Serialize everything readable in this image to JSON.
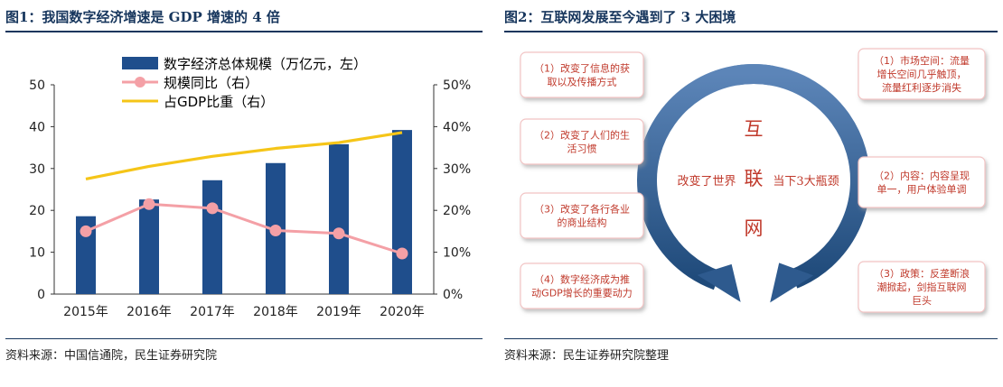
{
  "left_panel": {
    "title": "图1：我国数字经济增速是 GDP 增速的 4 倍",
    "source": "资料来源：中国信通院，民生证券研究院"
  },
  "right_panel": {
    "title": "图2：互联网发展至今遇到了 3 大困境",
    "source": "资料来源：民生证券研究院整理",
    "left_boxes": [
      {
        "lines": [
          "（1）改变了信息的获",
          "取以及传播方式"
        ]
      },
      {
        "lines": [
          "（2）改变了人们的生",
          "活习惯"
        ]
      },
      {
        "lines": [
          "（3）改变了各行各业",
          "的商业结构"
        ]
      },
      {
        "lines": [
          "（4）数字经济成为推",
          "动GDP增长的重要动力"
        ]
      }
    ],
    "right_boxes": [
      {
        "lines": [
          "（1）市场空间：流量",
          "增长空间几乎触顶，",
          "流量红利逐步消失"
        ]
      },
      {
        "lines": [
          "（2）内容：内容呈现",
          "单一，用户体验单调"
        ]
      },
      {
        "lines": [
          "（3）政策：反垄断浪",
          "潮掀起，剑指互联网",
          "巨头"
        ]
      }
    ],
    "center": {
      "chars": [
        "互",
        "联",
        "网"
      ],
      "left_label": "改变了世界",
      "right_label": "当下3大瓶颈"
    },
    "colors": {
      "arrow": "#2e5a8e",
      "box_border": "#f2c4c4",
      "text": "#c0392b"
    }
  },
  "chart_data": {
    "type": "bar",
    "categories": [
      "2015年",
      "2016年",
      "2017年",
      "2018年",
      "2019年",
      "2020年"
    ],
    "series": [
      {
        "name": "数字经济总体规模（万亿元，左）",
        "type": "bar",
        "axis": "left",
        "values": [
          18.6,
          22.6,
          27.2,
          31.3,
          35.8,
          39.2
        ],
        "color": "#1f4e8c"
      },
      {
        "name": "规模同比（右）",
        "type": "line",
        "axis": "right",
        "values": [
          15.0,
          21.5,
          20.5,
          15.2,
          14.5,
          9.7
        ],
        "color": "#f4a0a6"
      },
      {
        "name": "占GDP比重（右）",
        "type": "line",
        "axis": "right",
        "values": [
          27.5,
          30.5,
          32.9,
          34.8,
          36.2,
          38.6
        ],
        "color": "#f5c518"
      }
    ],
    "y_left": {
      "min": 0,
      "max": 50,
      "ticks": [
        "0",
        "10",
        "20",
        "30",
        "40",
        "50"
      ]
    },
    "y_right": {
      "min": 0,
      "max": 50,
      "ticks": [
        "0%",
        "10%",
        "20%",
        "30%",
        "40%",
        "50%"
      ]
    },
    "grid": false,
    "legend_position": "top"
  }
}
